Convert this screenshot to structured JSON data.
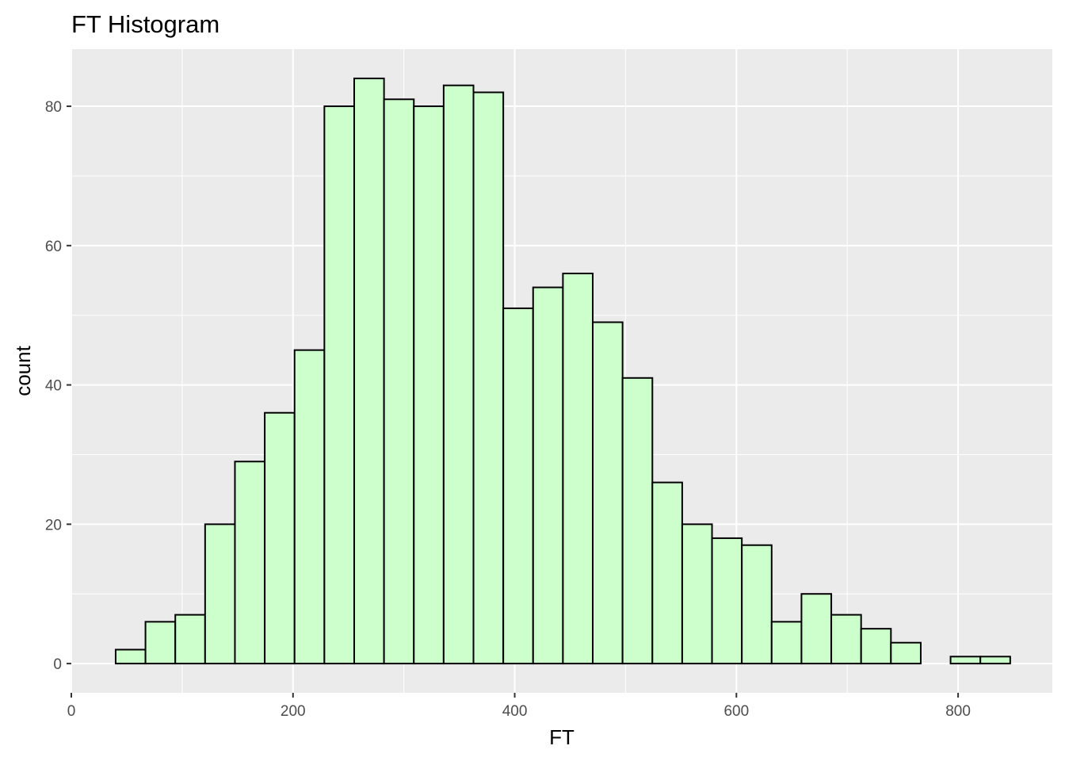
{
  "chart_data": {
    "type": "bar",
    "title": "FT Histogram",
    "xlabel": "FT",
    "ylabel": "count",
    "xlim": [
      0,
      885
    ],
    "ylim": [
      -4.2,
      88.2
    ],
    "x_ticks": [
      0,
      200,
      400,
      600,
      800
    ],
    "y_ticks": [
      0,
      20,
      40,
      60,
      80
    ],
    "grid": true,
    "colors": {
      "panel_background": "#ebebeb",
      "grid_line": "#ffffff",
      "bar_fill": "#ccffcc",
      "bar_outline": "#000000",
      "tick_mark": "#333333"
    },
    "bins": {
      "x_start": 40,
      "bin_width": 26.9,
      "counts": [
        2,
        6,
        7,
        20,
        29,
        36,
        45,
        80,
        84,
        81,
        80,
        83,
        82,
        51,
        54,
        56,
        49,
        41,
        26,
        20,
        18,
        17,
        6,
        10,
        7,
        5,
        3,
        0,
        1,
        1
      ]
    }
  }
}
